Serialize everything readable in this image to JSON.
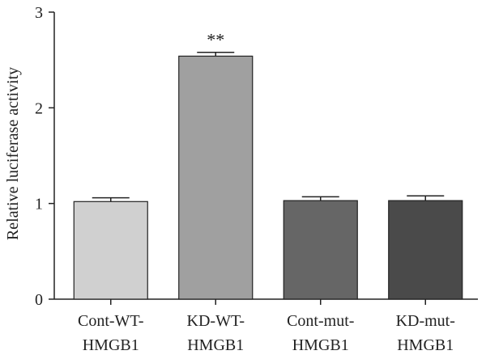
{
  "chart_data": {
    "type": "bar",
    "title": "",
    "xlabel": "",
    "ylabel": "Relative luciferase activity",
    "ylim": [
      0,
      3
    ],
    "yticks": [
      0,
      1,
      2,
      3
    ],
    "categories": [
      [
        "Cont-WT-",
        "HMGB1"
      ],
      [
        "KD-WT-",
        "HMGB1"
      ],
      [
        "Cont-mut-",
        "HMGB1"
      ],
      [
        "KD-mut-",
        "HMGB1"
      ]
    ],
    "values": [
      1.02,
      2.54,
      1.03,
      1.03
    ],
    "errors": [
      0.04,
      0.04,
      0.04,
      0.05
    ],
    "significance": [
      "",
      "**",
      "",
      ""
    ],
    "colors": [
      "#d0d0d0",
      "#a0a0a0",
      "#666666",
      "#4a4a4a"
    ],
    "grid": false,
    "legend": "none"
  }
}
